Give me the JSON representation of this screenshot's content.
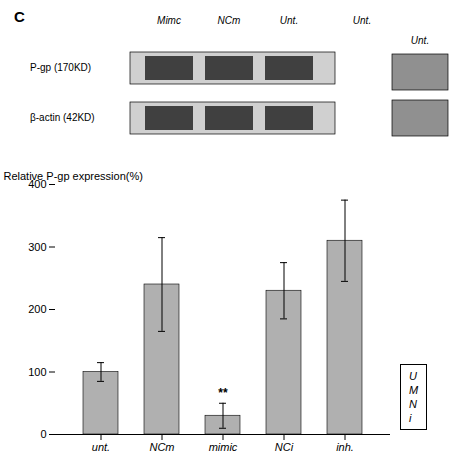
{
  "chart_data": {
    "type": "bar",
    "ylabel": "Relative P-gp expression(%)",
    "categories": [
      "unt.",
      "NCm",
      "mimic",
      "NCi",
      "inh."
    ],
    "values": [
      100,
      240,
      30,
      230,
      310
    ],
    "errors": [
      15,
      75,
      20,
      45,
      65
    ],
    "color": "#b0b0b0",
    "ylim": [
      0,
      400
    ],
    "yticks": [
      0,
      100,
      200,
      300,
      400
    ],
    "annotations": [
      {
        "text": "**",
        "category": "mimic"
      }
    ],
    "legend_lines": [
      "U",
      "M",
      "N",
      "i"
    ],
    "panel_label": "C",
    "blot_lane_labels": [
      "Mimc",
      "NCm",
      "Unt.",
      "Unt."
    ],
    "blot_band_labels": [
      "P-gp (170KD)",
      "β-actin (42KD)"
    ],
    "blot_inset_label": "Unt."
  }
}
